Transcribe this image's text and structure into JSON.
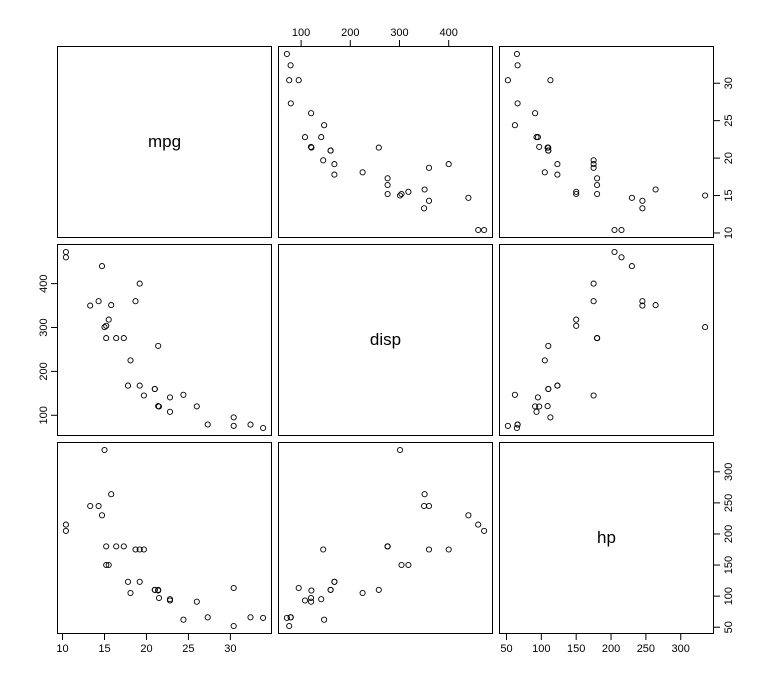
{
  "chart_data": {
    "type": "scatter",
    "subtype": "pairs-matrix",
    "title": "",
    "n_points": 32,
    "grid": "off",
    "point_style": "open-circle",
    "point_color": "#000000",
    "diagonal_labels": [
      "mpg",
      "disp",
      "hp"
    ],
    "variables": [
      {
        "name": "mpg",
        "range": [
          9.46,
          34.84
        ],
        "ticks": [
          10,
          15,
          20,
          25,
          30
        ],
        "values": [
          21,
          21,
          22.8,
          21.4,
          18.7,
          18.1,
          14.3,
          24.4,
          22.8,
          19.2,
          17.8,
          16.4,
          17.3,
          15.2,
          10.4,
          10.4,
          14.7,
          32.4,
          30.4,
          33.9,
          21.5,
          15.5,
          15.2,
          13.3,
          19.2,
          27.3,
          26,
          30.4,
          15.8,
          19.7,
          15,
          21.4
        ]
      },
      {
        "name": "disp",
        "range": [
          55.06,
          488.04
        ],
        "ticks": [
          100,
          200,
          300,
          400
        ],
        "values": [
          160,
          160,
          108,
          258,
          360,
          225,
          360,
          146.7,
          140.8,
          167.6,
          167.6,
          275.8,
          275.8,
          275.8,
          472,
          460,
          440,
          78.7,
          75.7,
          71.1,
          120.1,
          318,
          304,
          350,
          400,
          79,
          120.3,
          95.1,
          351,
          145,
          301,
          121
        ]
      },
      {
        "name": "hp",
        "range": [
          40.68,
          346.32
        ],
        "ticks": [
          50,
          100,
          150,
          200,
          250,
          300
        ],
        "values": [
          110,
          110,
          93,
          110,
          175,
          105,
          245,
          62,
          95,
          123,
          123,
          180,
          180,
          180,
          205,
          215,
          230,
          66,
          52,
          65,
          97,
          150,
          150,
          245,
          175,
          66,
          91,
          113,
          264,
          175,
          335,
          109
        ]
      }
    ],
    "panels": [
      {
        "row": 0,
        "col": 0,
        "label": "mpg"
      },
      {
        "row": 0,
        "col": 1,
        "x": "disp",
        "y": "mpg"
      },
      {
        "row": 0,
        "col": 2,
        "x": "hp",
        "y": "mpg"
      },
      {
        "row": 1,
        "col": 0,
        "x": "mpg",
        "y": "disp"
      },
      {
        "row": 1,
        "col": 1,
        "label": "disp"
      },
      {
        "row": 1,
        "col": 2,
        "x": "hp",
        "y": "disp"
      },
      {
        "row": 2,
        "col": 0,
        "x": "mpg",
        "y": "hp"
      },
      {
        "row": 2,
        "col": 1,
        "x": "disp",
        "y": "hp"
      },
      {
        "row": 2,
        "col": 2,
        "label": "hp"
      }
    ],
    "axes": [
      {
        "side": "top",
        "col": 1,
        "var": 1
      },
      {
        "side": "right",
        "row": 0,
        "var": 0
      },
      {
        "side": "right",
        "row": 2,
        "var": 2
      },
      {
        "side": "left",
        "row": 1,
        "var": 1
      },
      {
        "side": "bottom",
        "col": 0,
        "var": 0
      },
      {
        "side": "bottom",
        "col": 2,
        "var": 2
      }
    ]
  }
}
